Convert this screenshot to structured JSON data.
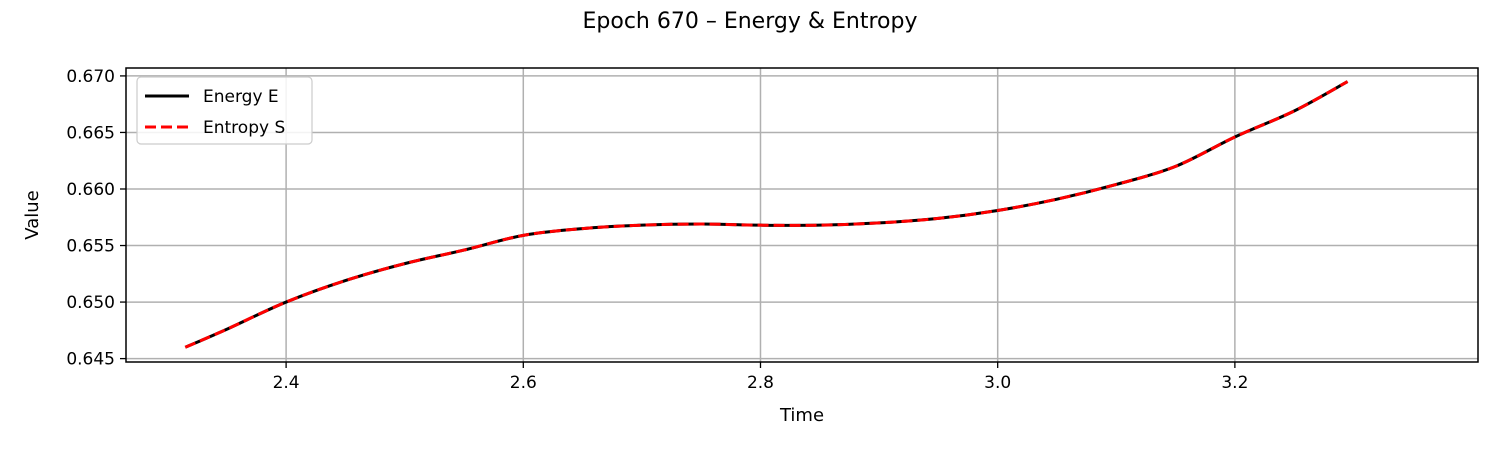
{
  "chart_data": {
    "type": "line",
    "title": "Epoch 670 – Energy & Entropy",
    "xlabel": "Time",
    "ylabel": "Value",
    "xlim": [
      2.265,
      3.405
    ],
    "ylim": [
      0.6447,
      0.6707
    ],
    "xticks": [
      2.4,
      2.6,
      2.8,
      3.0,
      3.2
    ],
    "xtick_labels": [
      "2.4",
      "2.6",
      "2.8",
      "3.0",
      "3.2"
    ],
    "yticks": [
      0.645,
      0.65,
      0.655,
      0.66,
      0.665,
      0.67
    ],
    "ytick_labels": [
      "0.645",
      "0.650",
      "0.655",
      "0.660",
      "0.665",
      "0.670"
    ],
    "grid": true,
    "legend_position": "top-left",
    "series": [
      {
        "name": "Energy E",
        "color": "#000000",
        "style": "solid",
        "x": [
          2.315,
          2.35,
          2.4,
          2.45,
          2.5,
          2.55,
          2.6,
          2.65,
          2.7,
          2.75,
          2.8,
          2.85,
          2.9,
          2.95,
          3.0,
          3.05,
          3.1,
          3.15,
          3.2,
          3.25,
          3.295
        ],
        "y": [
          0.646,
          0.6476,
          0.65,
          0.6519,
          0.6534,
          0.6546,
          0.6559,
          0.6565,
          0.6568,
          0.6569,
          0.6568,
          0.6568,
          0.657,
          0.6574,
          0.6581,
          0.6591,
          0.6604,
          0.662,
          0.6646,
          0.6669,
          0.6695
        ]
      },
      {
        "name": "Entropy S",
        "color": "#ff0000",
        "style": "dashed",
        "x": [
          2.315,
          2.35,
          2.4,
          2.45,
          2.5,
          2.55,
          2.6,
          2.65,
          2.7,
          2.75,
          2.8,
          2.85,
          2.9,
          2.95,
          3.0,
          3.05,
          3.1,
          3.15,
          3.2,
          3.25,
          3.295
        ],
        "y": [
          0.646,
          0.6476,
          0.65,
          0.6519,
          0.6534,
          0.6546,
          0.6559,
          0.6565,
          0.6568,
          0.6569,
          0.6568,
          0.6568,
          0.657,
          0.6574,
          0.6581,
          0.6591,
          0.6604,
          0.662,
          0.6646,
          0.6669,
          0.6695
        ]
      }
    ]
  }
}
